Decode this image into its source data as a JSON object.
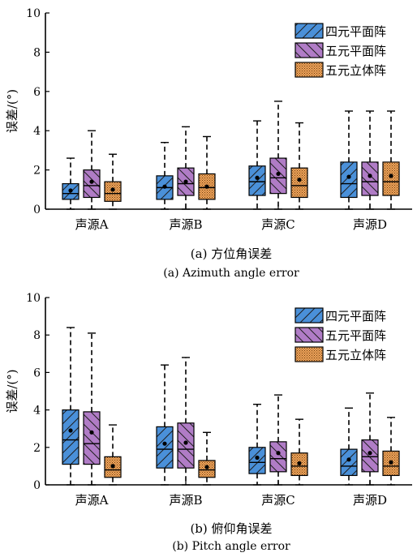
{
  "legend_labels": [
    "四元平面阵",
    "五元平面阵",
    "五元立体阵"
  ],
  "colors": [
    "#4a90d9",
    "#b07cc6",
    "#f0a45a"
  ],
  "hatch_styles": [
    "diag-forward",
    "diag-backward",
    "dots"
  ],
  "chart_data": [
    {
      "type": "box",
      "title": "(a) 方位角误差",
      "subtitle": "(a) Azimuth angle error",
      "xlabel": "",
      "ylabel": "误差/(°)",
      "ylim": [
        0,
        10
      ],
      "yticks": [
        0,
        2,
        4,
        6,
        8,
        10
      ],
      "grid": false,
      "legend_position": "top-right",
      "categories": [
        "声源A",
        "声源B",
        "声源C",
        "声源D"
      ],
      "series": [
        {
          "name": "四元平面阵",
          "boxes": [
            {
              "min": 0,
              "q1": 0.5,
              "median": 0.8,
              "q3": 1.3,
              "max": 2.6,
              "mean": 0.95
            },
            {
              "min": 0,
              "q1": 0.5,
              "median": 1.1,
              "q3": 1.7,
              "max": 3.4,
              "mean": 1.15
            },
            {
              "min": 0,
              "q1": 0.7,
              "median": 1.4,
              "q3": 2.2,
              "max": 4.5,
              "mean": 1.6
            },
            {
              "min": 0,
              "q1": 0.6,
              "median": 1.3,
              "q3": 2.4,
              "max": 5.0,
              "mean": 1.65
            }
          ]
        },
        {
          "name": "五元平面阵",
          "boxes": [
            {
              "min": 0,
              "q1": 0.6,
              "median": 1.2,
              "q3": 2.0,
              "max": 4.0,
              "mean": 1.4
            },
            {
              "min": 0,
              "q1": 0.7,
              "median": 1.3,
              "q3": 2.1,
              "max": 4.2,
              "mean": 1.4
            },
            {
              "min": 0,
              "q1": 0.8,
              "median": 1.6,
              "q3": 2.6,
              "max": 5.5,
              "mean": 1.8
            },
            {
              "min": 0,
              "q1": 0.7,
              "median": 1.4,
              "q3": 2.4,
              "max": 5.0,
              "mean": 1.7
            }
          ]
        },
        {
          "name": "五元立体阵",
          "boxes": [
            {
              "min": 0,
              "q1": 0.4,
              "median": 0.8,
              "q3": 1.4,
              "max": 2.8,
              "mean": 1.0
            },
            {
              "min": 0,
              "q1": 0.5,
              "median": 1.1,
              "q3": 1.8,
              "max": 3.7,
              "mean": 1.15
            },
            {
              "min": 0,
              "q1": 0.6,
              "median": 1.2,
              "q3": 2.1,
              "max": 4.4,
              "mean": 1.5
            },
            {
              "min": 0,
              "q1": 0.7,
              "median": 1.4,
              "q3": 2.4,
              "max": 5.0,
              "mean": 1.7
            }
          ]
        }
      ]
    },
    {
      "type": "box",
      "title": "(b) 俯仰角误差",
      "subtitle": "(b) Pitch angle error",
      "xlabel": "",
      "ylabel": "误差/(°)",
      "ylim": [
        0,
        10
      ],
      "yticks": [
        0,
        2,
        4,
        6,
        8,
        10
      ],
      "grid": false,
      "legend_position": "top-right",
      "categories": [
        "声源A",
        "声源B",
        "声源C",
        "声源D"
      ],
      "series": [
        {
          "name": "四元平面阵",
          "boxes": [
            {
              "min": 0,
              "q1": 1.1,
              "median": 2.4,
              "q3": 4.0,
              "max": 8.4,
              "mean": 2.9
            },
            {
              "min": 0,
              "q1": 0.9,
              "median": 1.9,
              "q3": 3.1,
              "max": 6.4,
              "mean": 2.2
            },
            {
              "min": 0,
              "q1": 0.6,
              "median": 1.2,
              "q3": 2.0,
              "max": 4.3,
              "mean": 1.45
            },
            {
              "min": 0,
              "q1": 0.5,
              "median": 1.0,
              "q3": 1.9,
              "max": 4.1,
              "mean": 1.35
            }
          ]
        },
        {
          "name": "五元平面阵",
          "boxes": [
            {
              "min": 0,
              "q1": 1.1,
              "median": 2.2,
              "q3": 3.9,
              "max": 8.1,
              "mean": 2.8
            },
            {
              "min": 0,
              "q1": 0.9,
              "median": 1.9,
              "q3": 3.3,
              "max": 6.8,
              "mean": 2.25
            },
            {
              "min": 0,
              "q1": 0.7,
              "median": 1.4,
              "q3": 2.3,
              "max": 4.8,
              "mean": 1.7
            },
            {
              "min": 0,
              "q1": 0.7,
              "median": 1.5,
              "q3": 2.4,
              "max": 4.9,
              "mean": 1.7
            }
          ]
        },
        {
          "name": "五元立体阵",
          "boxes": [
            {
              "min": 0,
              "q1": 0.4,
              "median": 0.8,
              "q3": 1.5,
              "max": 3.2,
              "mean": 1.0
            },
            {
              "min": 0,
              "q1": 0.4,
              "median": 0.8,
              "q3": 1.3,
              "max": 2.8,
              "mean": 0.95
            },
            {
              "min": 0,
              "q1": 0.5,
              "median": 1.0,
              "q3": 1.7,
              "max": 3.5,
              "mean": 1.15
            },
            {
              "min": 0,
              "q1": 0.5,
              "median": 1.0,
              "q3": 1.8,
              "max": 3.6,
              "mean": 1.2
            }
          ]
        }
      ]
    }
  ]
}
